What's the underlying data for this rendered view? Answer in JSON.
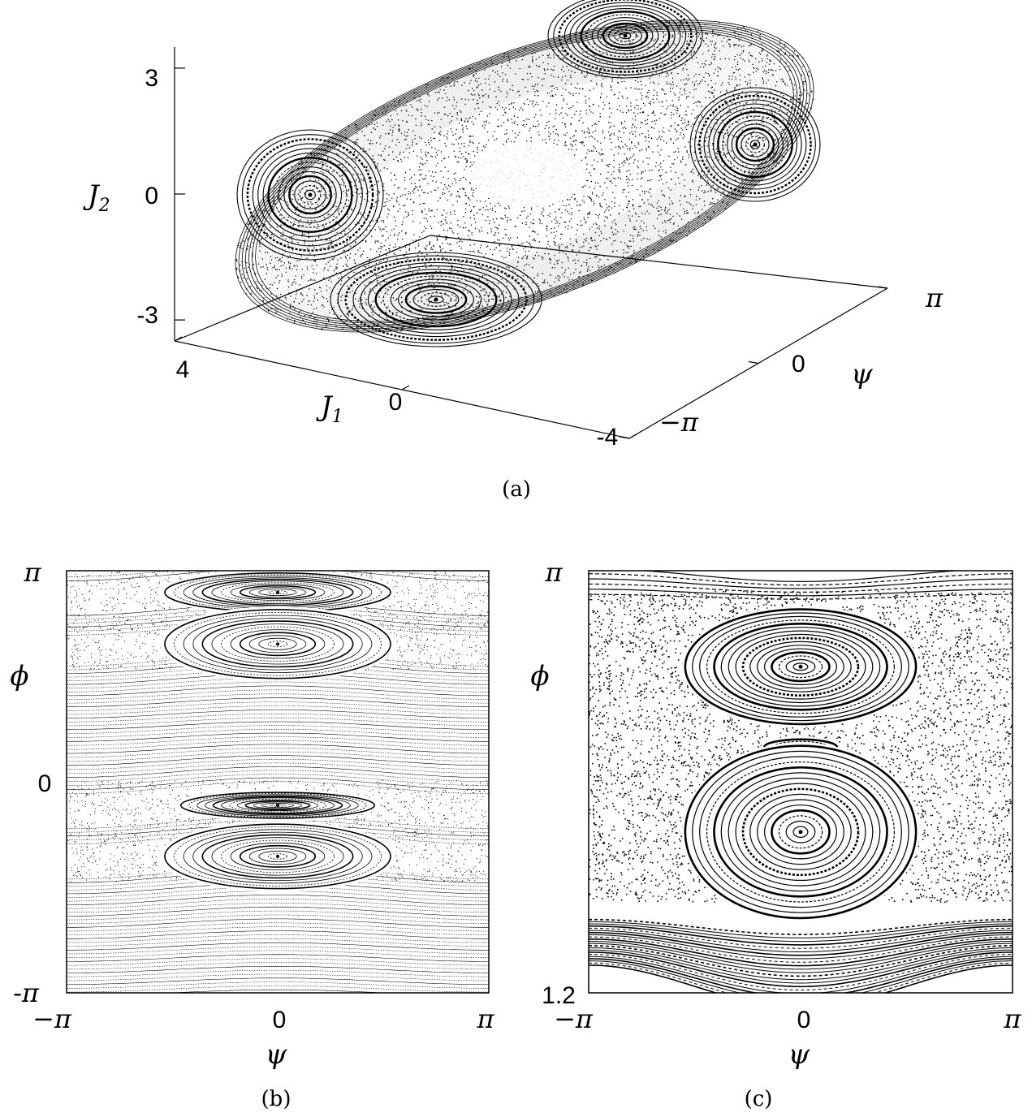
{
  "chart_data": [
    {
      "id": "a",
      "type": "scatter",
      "panel_label": "(a)",
      "xlabel": "J",
      "xlabel_sub": "1",
      "ylabel": "J",
      "ylabel_sub": "2",
      "zlabel": "ψ",
      "x_ticks": [
        "4",
        "0",
        "-4"
      ],
      "y_ticks": [
        "3",
        "0",
        "-3"
      ],
      "z_ticks": [
        "π",
        "0",
        "−π"
      ],
      "xlim": [
        -4,
        4
      ],
      "ylim": [
        -3.5,
        3.5
      ],
      "zlim": [
        -3.1416,
        3.1416
      ],
      "grid": false,
      "islands": [
        {
          "J1": 1.9,
          "J2": -2.7,
          "psi": 0.0
        },
        {
          "J1": -1.9,
          "J2": 2.7,
          "psi": 0.0
        },
        {
          "J1": 2.6,
          "J2": 0.0,
          "psi": -2.6
        },
        {
          "J1": -2.6,
          "J2": 1.2,
          "psi": 2.6
        }
      ]
    },
    {
      "id": "b",
      "type": "scatter",
      "panel_label": "(b)",
      "xlabel": "ψ",
      "ylabel": "ϕ",
      "x_ticks": [
        "−π",
        "0",
        "π"
      ],
      "y_ticks": [
        "π",
        "0",
        "-π"
      ],
      "xlim": [
        -3.1416,
        3.1416
      ],
      "ylim": [
        -3.1416,
        3.1416
      ],
      "grid": false,
      "islands": [
        {
          "psi": 0.0,
          "phi": 2.82,
          "width": 2.1,
          "height": 0.18
        },
        {
          "psi": 0.0,
          "phi": 2.05,
          "width": 2.1,
          "height": 0.32
        },
        {
          "psi": 0.0,
          "phi": -0.35,
          "width": 1.8,
          "height": 0.12
        },
        {
          "psi": 0.0,
          "phi": -1.11,
          "width": 2.1,
          "height": 0.3
        }
      ]
    },
    {
      "id": "c",
      "type": "scatter",
      "panel_label": "(c)",
      "xlabel": "ψ",
      "ylabel": "ϕ",
      "x_ticks": [
        "−π",
        "0",
        "π"
      ],
      "y_ticks": [
        "π",
        "1.2"
      ],
      "xlim": [
        -3.1416,
        3.1416
      ],
      "ylim": [
        1.2,
        3.1416
      ],
      "grid": false,
      "islands": [
        {
          "psi": 0.0,
          "phi": 2.7,
          "width": 1.9,
          "height": 0.22
        },
        {
          "psi": 0.0,
          "phi": 2.33,
          "width": 0.6,
          "height": 0.03
        },
        {
          "psi": 0.0,
          "phi": 1.94,
          "width": 1.9,
          "height": 0.33
        }
      ]
    }
  ]
}
